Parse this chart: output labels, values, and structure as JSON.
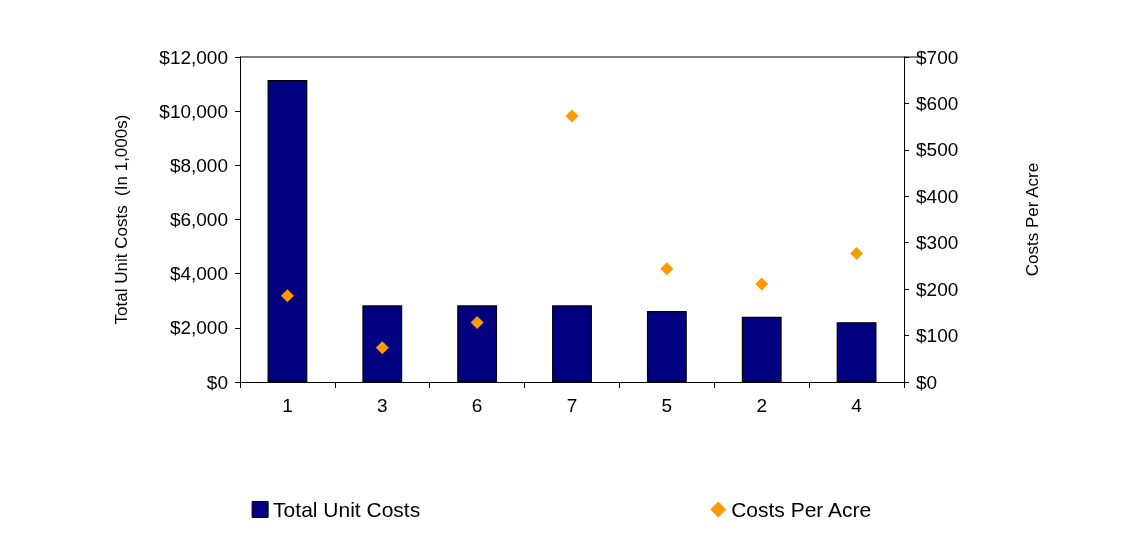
{
  "chart_data": {
    "type": "bar",
    "categories": [
      "1",
      "3",
      "6",
      "7",
      "5",
      "2",
      "4"
    ],
    "ylabel": "Total Unit Costs  (In 1,000s)",
    "y2label": "Costs Per Acre",
    "ylim": [
      0,
      12000
    ],
    "yticks": [
      {
        "value": 0,
        "label": "$0"
      },
      {
        "value": 2000,
        "label": "$2,000"
      },
      {
        "value": 4000,
        "label": "$4,000"
      },
      {
        "value": 6000,
        "label": "$6,000"
      },
      {
        "value": 8000,
        "label": "$8,000"
      },
      {
        "value": 10000,
        "label": "$10,000"
      },
      {
        "value": 12000,
        "label": "$12,000"
      }
    ],
    "y2lim": [
      0,
      700
    ],
    "y2ticks": [
      {
        "value": 0,
        "label": "$0"
      },
      {
        "value": 100,
        "label": "$100"
      },
      {
        "value": 200,
        "label": "$200"
      },
      {
        "value": 300,
        "label": "$300"
      },
      {
        "value": 400,
        "label": "$400"
      },
      {
        "value": 500,
        "label": "$500"
      },
      {
        "value": 600,
        "label": "$600"
      },
      {
        "value": 700,
        "label": "$700"
      }
    ],
    "series": [
      {
        "name": "Total Unit Costs",
        "color": "#000080",
        "values": [
          11150,
          2830,
          2830,
          2830,
          2620,
          2410,
          2210
        ]
      },
      {
        "name": "Costs Per Acre",
        "type": "scatter",
        "axis": "y2",
        "color": "#ff9900",
        "marker": "diamond",
        "values": [
          186,
          74,
          128,
          573,
          244,
          211,
          277
        ]
      }
    ],
    "grid": false,
    "legend": "bottom"
  }
}
